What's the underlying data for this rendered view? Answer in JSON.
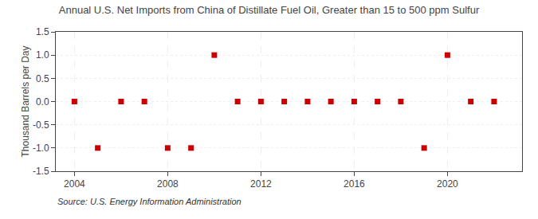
{
  "chart_data": {
    "type": "scatter",
    "title": "Annual U.S. Net Imports from China of Distillate Fuel Oil, Greater than 15 to 500 ppm Sulfur",
    "y_label": "Thousand Barrels per Day",
    "annotations": [
      "Source: U.S. Energy Information Administration"
    ],
    "x": [
      2004,
      2005,
      2006,
      2007,
      2008,
      2009,
      2010,
      2011,
      2012,
      2013,
      2014,
      2015,
      2016,
      2017,
      2018,
      2019,
      2020,
      2021,
      2022
    ],
    "values": [
      0,
      -1,
      0,
      0,
      -1,
      -1,
      1,
      0,
      0,
      0,
      0,
      0,
      0,
      0,
      0,
      -1,
      1,
      0,
      0
    ],
    "color": "#cc0000",
    "marker": "square",
    "xlim": [
      2003.2,
      2023.2
    ],
    "xticks": [
      2004,
      2008,
      2012,
      2016,
      2020
    ],
    "ylim": [
      -1.5,
      1.5
    ],
    "yticks": [
      -1.5,
      {
        "value": -1.0,
        "label": "-1.0"
      },
      {
        "value": -0.5,
        "label": "-0.5"
      },
      {
        "value": 0.0,
        "label": "0.0"
      },
      0.5,
      {
        "value": 1.0,
        "label": "1.0"
      },
      1.5
    ],
    "grid": true
  }
}
